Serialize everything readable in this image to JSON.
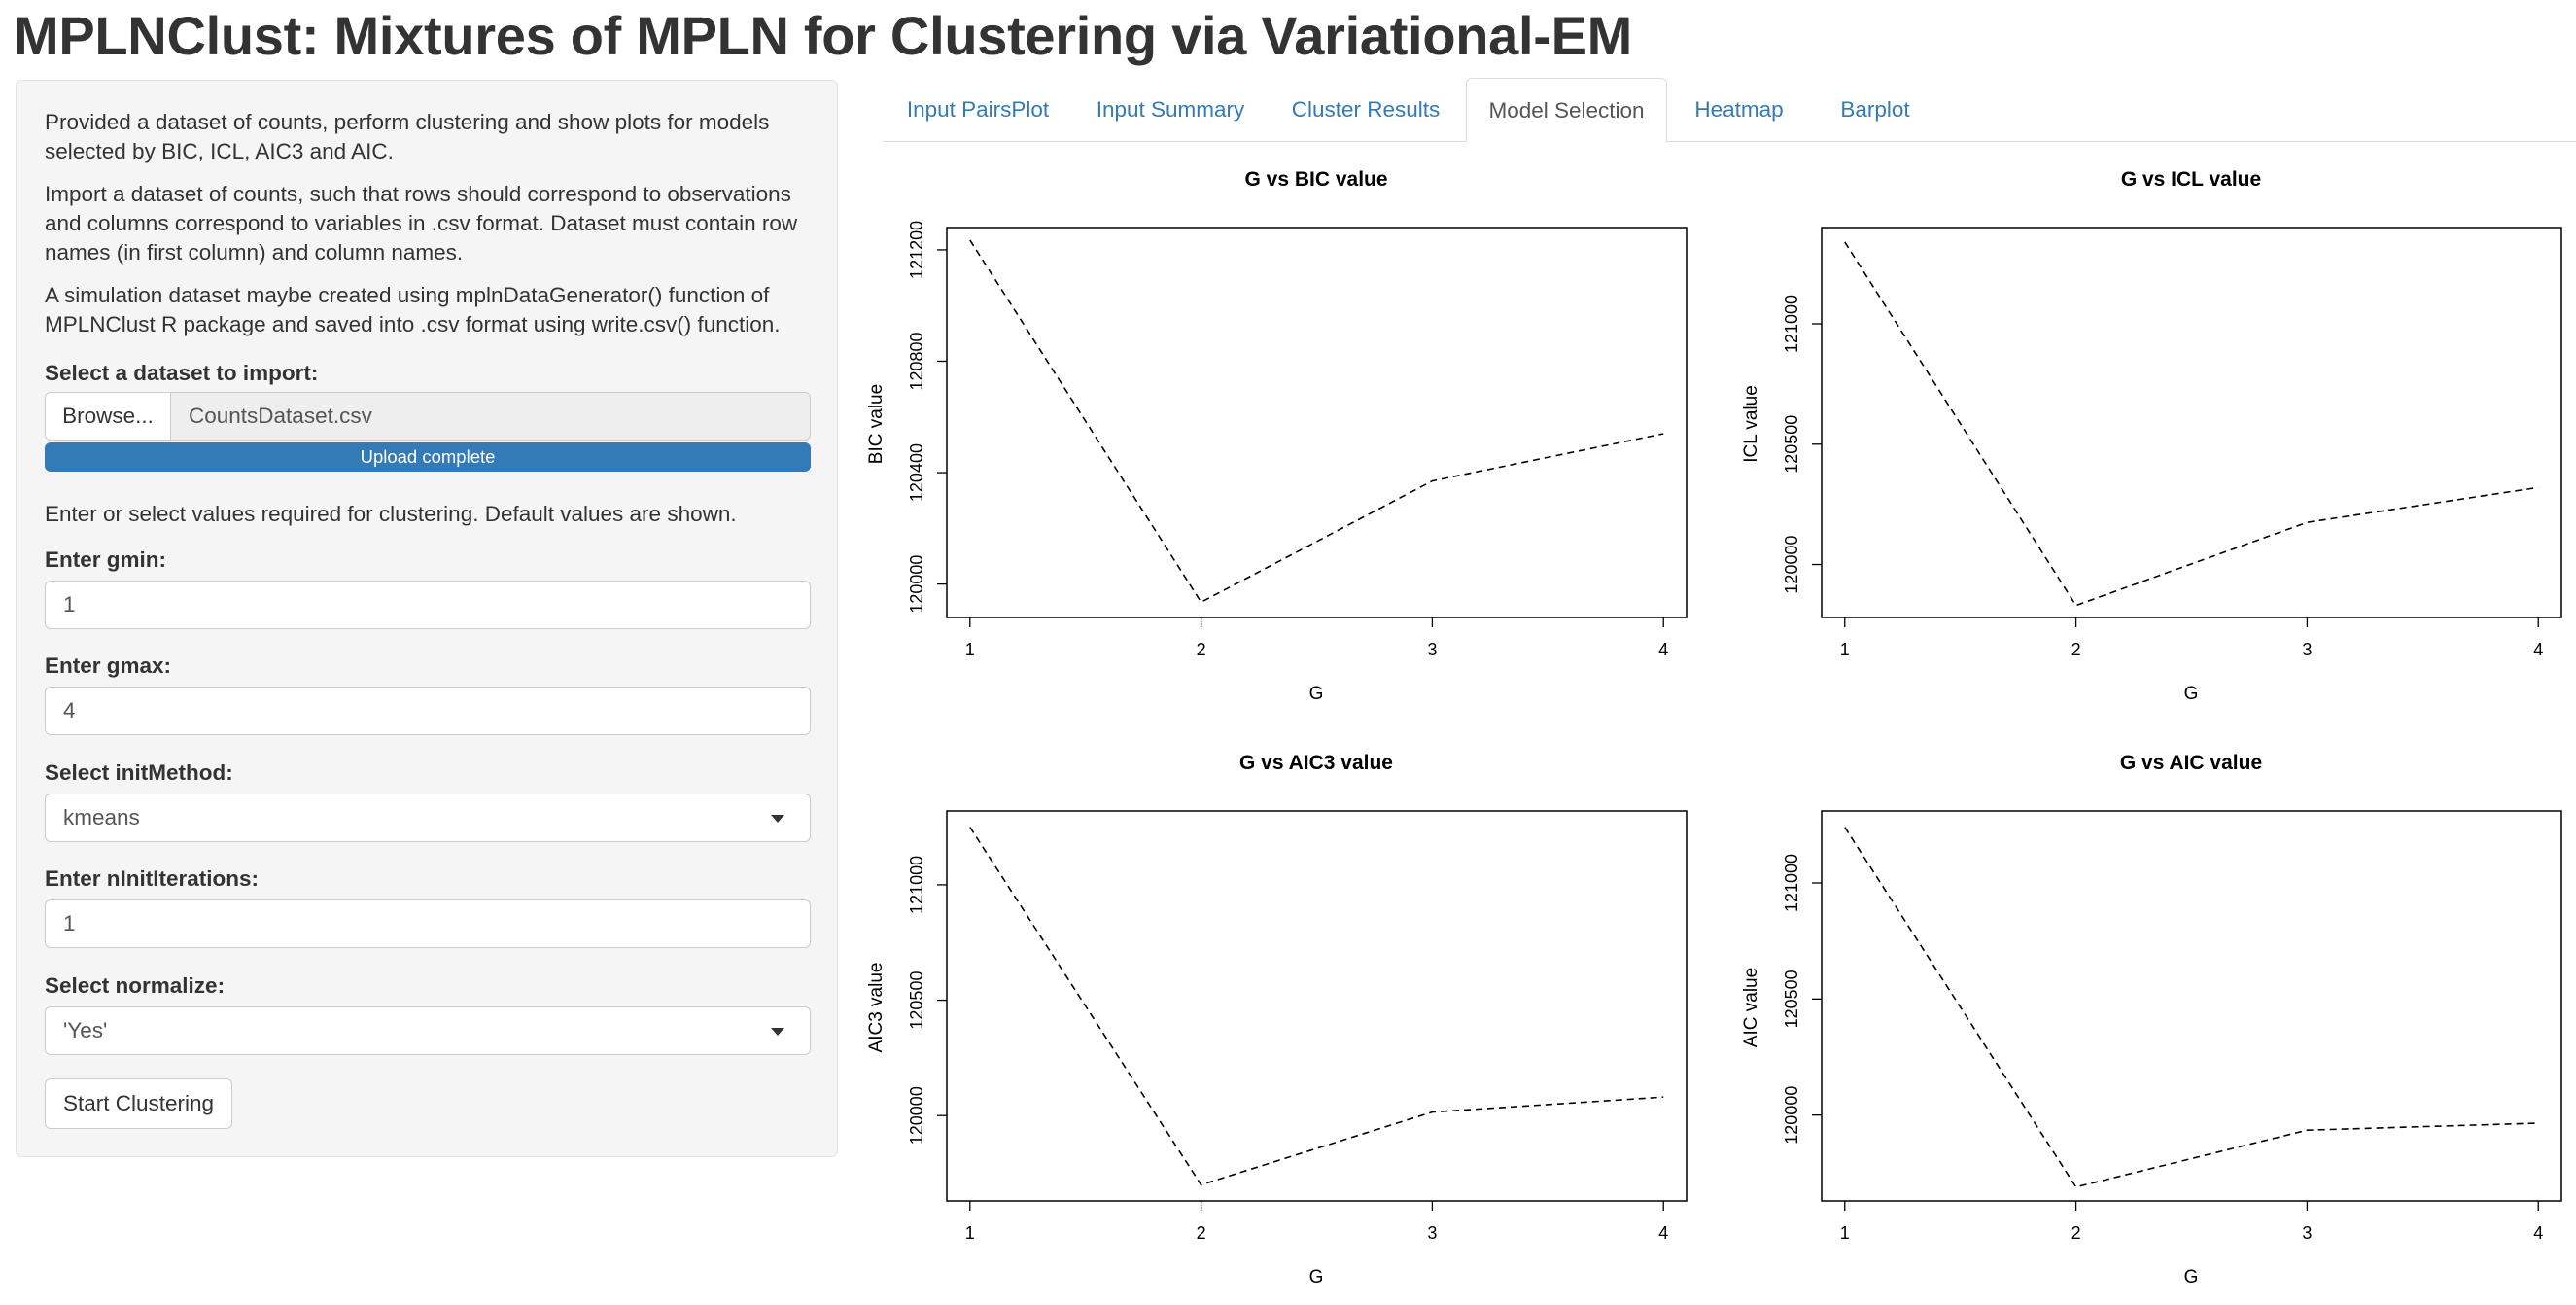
{
  "app": {
    "title": "MPLNClust: Mixtures of MPLN for Clustering via Variational-EM"
  },
  "sidebar": {
    "intro1": "Provided a dataset of counts, perform clustering and show plots for models selected by BIC, ICL, AIC3 and AIC.",
    "intro2": "Import a dataset of counts, such that rows should correspond to observations and columns correspond to variables in .csv format. Dataset must contain row names (in first column) and column names.",
    "intro3": "A simulation dataset maybe created using mplnDataGenerator() function of MPLNClust R package and saved into .csv format using write.csv() function.",
    "file_label": "Select a dataset to import:",
    "browse_label": "Browse...",
    "file_name": "CountsDataset.csv",
    "upload_status": "Upload complete",
    "upload_progress": 1.0,
    "defaults_note": "Enter or select values required for clustering. Default values are shown.",
    "gmin_label": "Enter gmin:",
    "gmin_value": "1",
    "gmax_label": "Enter gmax:",
    "gmax_value": "4",
    "init_label": "Select initMethod:",
    "init_value": "kmeans",
    "niter_label": "Enter nInitIterations:",
    "niter_value": "1",
    "normalize_label": "Select normalize:",
    "normalize_value": "'Yes'",
    "start_label": "Start Clustering"
  },
  "tabs": [
    "Input PairsPlot",
    "Input Summary",
    "Cluster Results",
    "Model Selection",
    "Heatmap",
    "Barplot"
  ],
  "active_tab": "Model Selection",
  "chart_data": [
    {
      "type": "line",
      "title": "G vs BIC value",
      "xlabel": "G",
      "ylabel": "BIC value",
      "x": [
        1,
        2,
        3,
        4
      ],
      "y": [
        121235,
        119935,
        120370,
        120540
      ],
      "xlim": [
        0.9,
        4.1
      ],
      "ylim": [
        119880,
        121280
      ],
      "xticks": [
        1,
        2,
        3,
        4
      ],
      "yticks": [
        120000,
        120400,
        120800,
        121200
      ],
      "line_style": "dashed"
    },
    {
      "type": "line",
      "title": "G vs ICL value",
      "xlabel": "G",
      "ylabel": "ICL value",
      "x": [
        1,
        2,
        3,
        4
      ],
      "y": [
        121340,
        119830,
        120175,
        120320
      ],
      "xlim": [
        0.9,
        4.1
      ],
      "ylim": [
        119780,
        121400
      ],
      "xticks": [
        1,
        2,
        3,
        4
      ],
      "yticks": [
        120000,
        120500,
        121000
      ],
      "line_style": "dashed"
    },
    {
      "type": "line",
      "title": "G vs AIC3 value",
      "xlabel": "G",
      "ylabel": "AIC3 value",
      "x": [
        1,
        2,
        3,
        4
      ],
      "y": [
        121250,
        119700,
        120015,
        120080
      ],
      "xlim": [
        0.9,
        4.1
      ],
      "ylim": [
        119630,
        121320
      ],
      "xticks": [
        1,
        2,
        3,
        4
      ],
      "yticks": [
        120000,
        120500,
        121000
      ],
      "line_style": "dashed"
    },
    {
      "type": "line",
      "title": "G vs AIC value",
      "xlabel": "G",
      "ylabel": "AIC value",
      "x": [
        1,
        2,
        3,
        4
      ],
      "y": [
        121240,
        119690,
        119935,
        119965
      ],
      "xlim": [
        0.9,
        4.1
      ],
      "ylim": [
        119630,
        121310
      ],
      "xticks": [
        1,
        2,
        3,
        4
      ],
      "yticks": [
        120000,
        120500,
        121000
      ],
      "line_style": "dashed"
    }
  ]
}
